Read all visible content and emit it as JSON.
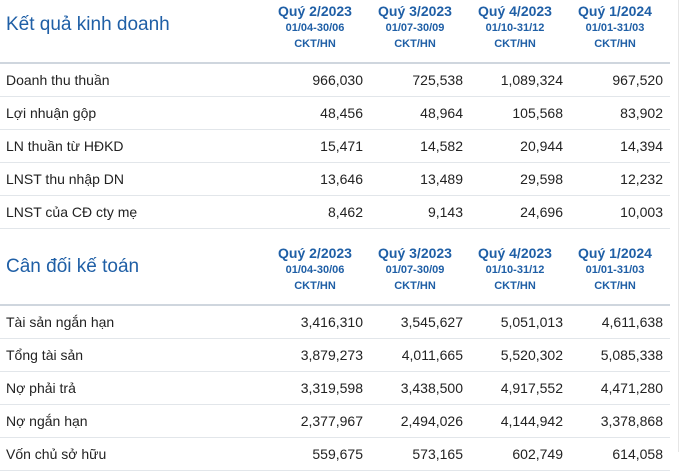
{
  "columns": [
    {
      "quarter": "Quý 2/2023",
      "range": "01/04-30/06",
      "audit": "CKT/HN"
    },
    {
      "quarter": "Quý 3/2023",
      "range": "01/07-30/09",
      "audit": "CKT/HN"
    },
    {
      "quarter": "Quý 4/2023",
      "range": "01/10-31/12",
      "audit": "CKT/HN"
    },
    {
      "quarter": "Quý 1/2024",
      "range": "01/01-31/03",
      "audit": "CKT/HN"
    }
  ],
  "business_results": {
    "title": "Kết quả kinh doanh",
    "rows": [
      {
        "label": "Doanh thu thuần",
        "values": [
          "966,030",
          "725,538",
          "1,089,324",
          "967,520"
        ]
      },
      {
        "label": "Lợi nhuận gộp",
        "values": [
          "48,456",
          "48,964",
          "105,568",
          "83,902"
        ]
      },
      {
        "label": "LN thuần từ HĐKD",
        "values": [
          "15,471",
          "14,582",
          "20,944",
          "14,394"
        ]
      },
      {
        "label": "LNST thu nhập DN",
        "values": [
          "13,646",
          "13,489",
          "29,598",
          "12,232"
        ]
      },
      {
        "label": "LNST của CĐ cty mẹ",
        "values": [
          "8,462",
          "9,143",
          "24,696",
          "10,003"
        ]
      }
    ]
  },
  "balance_sheet": {
    "title": "Cân đối kế toán",
    "rows": [
      {
        "label": "Tài sản ngắn hạn",
        "values": [
          "3,416,310",
          "3,545,627",
          "5,051,013",
          "4,611,638"
        ]
      },
      {
        "label": "Tổng tài sản",
        "values": [
          "3,879,273",
          "4,011,665",
          "5,520,302",
          "5,085,338"
        ]
      },
      {
        "label": "Nợ phải trả",
        "values": [
          "3,319,598",
          "3,438,500",
          "4,917,552",
          "4,471,280"
        ]
      },
      {
        "label": "Nợ ngắn hạn",
        "values": [
          "2,377,967",
          "2,494,026",
          "4,144,942",
          "3,378,868"
        ]
      },
      {
        "label": "Vốn chủ sở hữu",
        "values": [
          "559,675",
          "573,165",
          "602,749",
          "614,058"
        ]
      }
    ]
  },
  "colors": {
    "accent": "#1f5fa6",
    "divider": "#cfd6de"
  }
}
